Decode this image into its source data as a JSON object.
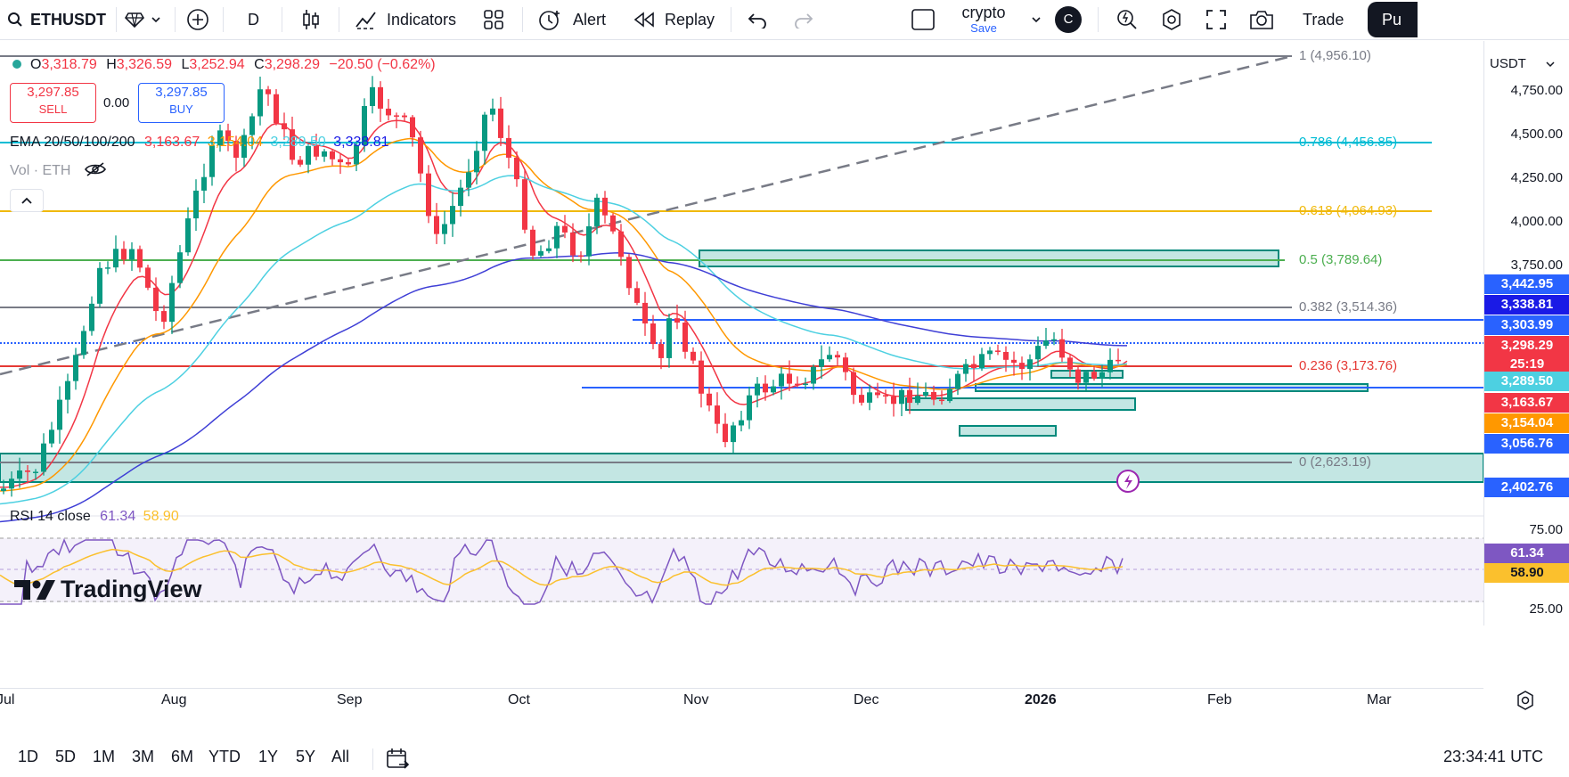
{
  "toolbar": {
    "symbol": "ETHUSDT",
    "interval": "D",
    "indicators_label": "Indicators",
    "alert_label": "Alert",
    "replay_label": "Replay",
    "layout_name": "crypto",
    "layout_save": "Save",
    "layout_avatar": "C",
    "trade_label": "Trade",
    "publish_label": "Pu"
  },
  "legend": {
    "open_label": "O",
    "open": "3,318.79",
    "high_label": "H",
    "high": "3,326.59",
    "low_label": "L",
    "low": "3,252.94",
    "close_label": "C",
    "close": "3,298.29",
    "change": "−20.50 (−0.62%)",
    "sell_price": "3,297.85",
    "sell_label": "SELL",
    "spread": "0.00",
    "buy_price": "3,297.85",
    "buy_label": "BUY",
    "ema_label": "EMA 20/50/100/200",
    "ema_values": [
      "3,163.67",
      "3,154.04",
      "3,289.50",
      "3,338.81"
    ],
    "vol_label": "Vol · ETH",
    "rsi_label": "RSI 14 close",
    "rsi_values": [
      "61.34",
      "58.90"
    ]
  },
  "fib_levels": [
    {
      "label": "1 (4,956.10)",
      "color": "#787b86"
    },
    {
      "label": "0.786 (4,456.85)",
      "color": "#00bcd4"
    },
    {
      "label": "0.618 (4,064.93)",
      "color": "#f0b90b"
    },
    {
      "label": "0.5 (3,789.64)",
      "color": "#4caf50"
    },
    {
      "label": "0.382 (3,514.36)",
      "color": "#787b86"
    },
    {
      "label": "0.236 (3,173.76)",
      "color": "#e53935"
    },
    {
      "label": "0 (2,623.19)",
      "color": "#787b86"
    }
  ],
  "price_scale": {
    "currency": "USDT",
    "ticks": [
      "4,750.00",
      "4,500.00",
      "4,250.00",
      "4,000.00",
      "3,750.00"
    ],
    "labels": [
      {
        "text": "3,442.95",
        "color": "#2962ff"
      },
      {
        "text": "3,338.81",
        "color": "#1a1ae6"
      },
      {
        "text": "3,303.99",
        "color": "#2962ff"
      },
      {
        "text": "3,298.29",
        "color": "#f23645"
      },
      {
        "text": "25:19",
        "color": "#f23645"
      },
      {
        "text": "3,289.50",
        "color": "#4dd0e1"
      },
      {
        "text": "3,163.67",
        "color": "#f23645"
      },
      {
        "text": "3,154.04",
        "color": "#ff9800"
      },
      {
        "text": "3,056.76",
        "color": "#2962ff"
      },
      {
        "text": "2,402.76",
        "color": "#2962ff"
      }
    ],
    "rsi_ticks": [
      "75.00",
      "25.00"
    ],
    "rsi_labels": [
      {
        "text": "61.34",
        "color": "#7e57c2"
      },
      {
        "text": "58.90",
        "color": "#fbc02d"
      }
    ]
  },
  "time_axis": [
    "Jul",
    "Aug",
    "Sep",
    "Oct",
    "Nov",
    "Dec",
    "2026",
    "Feb",
    "Mar"
  ],
  "bottom": {
    "ranges": [
      "1D",
      "5D",
      "1M",
      "3M",
      "6M",
      "YTD",
      "1Y",
      "5Y",
      "All"
    ],
    "clock": "23:34:41 UTC"
  },
  "watermark": "TradingView"
}
